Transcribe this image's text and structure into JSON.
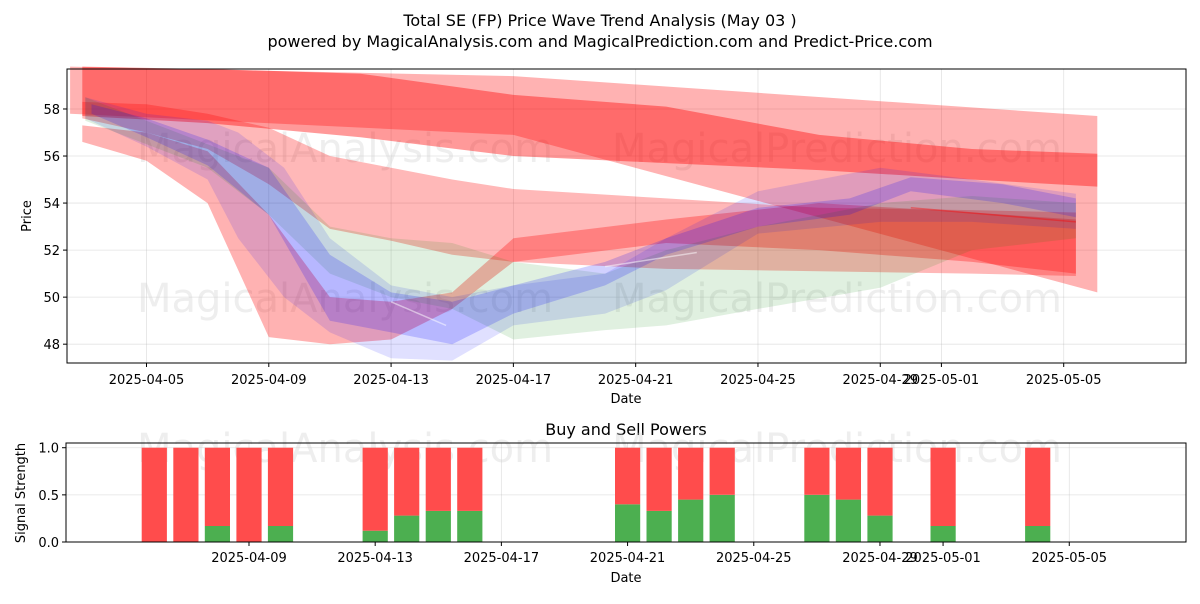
{
  "figure": {
    "title_line1": "Total SE (FP) Price Wave Trend Analysis (May 03 )",
    "title_line2": "powered by MagicalAnalysis.com and MagicalPrediction.com and Predict-Price.com",
    "watermarks": [
      "MagicalAnalysis.com",
      "MagicalPrediction.com",
      "MagicalAnalysis.com",
      "MagicalPrediction.com",
      "MagicalAnalysis.com",
      "MagicalPrediction.com"
    ]
  },
  "chart_data": [
    {
      "type": "area",
      "title": "",
      "xlabel": "Date",
      "ylabel": "Price",
      "x_start": "2025-04-02",
      "xlim": [
        0.4,
        37.0
      ],
      "ylim": [
        47.2,
        59.7
      ],
      "xticks": [
        {
          "day": 3,
          "label": "2025-04-05"
        },
        {
          "day": 7,
          "label": "2025-04-09"
        },
        {
          "day": 11,
          "label": "2025-04-13"
        },
        {
          "day": 15,
          "label": "2025-04-17"
        },
        {
          "day": 19,
          "label": "2025-04-21"
        },
        {
          "day": 23,
          "label": "2025-04-25"
        },
        {
          "day": 27,
          "label": "2025-04-29"
        },
        {
          "day": 29,
          "label": "2025-05-01"
        },
        {
          "day": 33,
          "label": "2025-05-05"
        }
      ],
      "yticks": [
        48,
        50,
        52,
        54,
        56,
        58
      ],
      "bands": [
        {
          "color": "#ff0000",
          "opacity": 0.3,
          "x": [
            0.5,
            15,
            34.1
          ],
          "upper": [
            59.8,
            59.4,
            57.7
          ],
          "lower": [
            57.8,
            56.9,
            50.2
          ]
        },
        {
          "color": "#ff0000",
          "opacity": 0.4,
          "x": [
            0.9,
            5,
            10,
            15,
            20,
            25,
            30,
            34.1
          ],
          "upper": [
            59.8,
            59.7,
            59.5,
            58.6,
            58.1,
            56.9,
            56.3,
            56.1
          ],
          "lower": [
            57.7,
            57.4,
            56.8,
            56.0,
            55.7,
            55.4,
            55.0,
            54.7
          ]
        },
        {
          "color": "#ff0000",
          "opacity": 0.28,
          "x": [
            0.9,
            3,
            5,
            7,
            9,
            11,
            13,
            15,
            20,
            25,
            30,
            33.4
          ],
          "upper": [
            58.3,
            58.2,
            57.8,
            57.2,
            56.0,
            55.5,
            55.0,
            54.6,
            54.2,
            53.8,
            53.7,
            53.6
          ],
          "lower": [
            57.6,
            57.0,
            56.3,
            54.8,
            52.9,
            52.4,
            51.8,
            51.5,
            51.2,
            51.1,
            51.0,
            50.9
          ]
        },
        {
          "color": "#ff0000",
          "opacity": 0.3,
          "x": [
            0.9,
            3,
            5,
            7,
            9,
            11,
            13,
            15,
            20,
            25,
            30,
            33.4
          ],
          "upper": [
            57.3,
            57.0,
            56.2,
            53.5,
            50.0,
            49.8,
            50.2,
            52.5,
            53.3,
            54.0,
            53.6,
            53.3
          ],
          "lower": [
            56.6,
            55.8,
            54.0,
            48.3,
            48.0,
            48.2,
            49.5,
            51.5,
            52.3,
            52.0,
            51.5,
            51.0
          ]
        },
        {
          "color": "#0000ff",
          "opacity": 0.12,
          "x": [
            1.0,
            3,
            5,
            6,
            7.5,
            9,
            11,
            13,
            15,
            18,
            20,
            23,
            27,
            30,
            33.4
          ],
          "upper": [
            58.5,
            57.8,
            57.5,
            57.0,
            55.5,
            52.5,
            50.5,
            50.0,
            50.5,
            51.0,
            52.5,
            54.5,
            55.5,
            55.0,
            54.4
          ],
          "lower": [
            57.6,
            56.4,
            55.0,
            52.5,
            50.0,
            48.5,
            47.4,
            47.3,
            48.8,
            49.3,
            50.3,
            52.7,
            53.2,
            53.2,
            52.9
          ]
        },
        {
          "color": "#008000",
          "opacity": 0.12,
          "x": [
            1.0,
            3,
            5,
            7,
            9,
            11,
            13,
            15,
            18,
            20,
            23,
            27,
            30,
            33.4
          ],
          "upper": [
            58.5,
            57.5,
            56.5,
            55.5,
            53.0,
            52.5,
            52.3,
            51.5,
            51.0,
            52.0,
            53.0,
            54.0,
            54.3,
            54.0
          ],
          "lower": [
            57.5,
            56.5,
            55.5,
            53.5,
            51.0,
            50.0,
            49.5,
            48.2,
            48.6,
            48.8,
            49.5,
            50.4,
            52.0,
            52.5
          ]
        },
        {
          "color": "#0000ff",
          "opacity": 0.18,
          "x": [
            1.2,
            3,
            5,
            7,
            9,
            11,
            13,
            15,
            18,
            20,
            23,
            26,
            28,
            31,
            33.4
          ],
          "upper": [
            58.2,
            57.6,
            56.7,
            55.5,
            51.8,
            50.2,
            49.8,
            50.5,
            51.5,
            52.5,
            53.8,
            54.2,
            55.1,
            54.8,
            54.2
          ],
          "lower": [
            57.8,
            56.8,
            55.6,
            53.5,
            49.0,
            48.5,
            48.0,
            49.3,
            50.5,
            51.8,
            53.0,
            53.5,
            54.5,
            54.0,
            53.4
          ]
        }
      ],
      "lines": [
        {
          "color": "#ff0000",
          "opacity": 0.4,
          "x": [
            28,
            33.4
          ],
          "y": [
            53.8,
            53.2
          ]
        },
        {
          "color": "#ffffff",
          "opacity": 0.5,
          "x": [
            18,
            21
          ],
          "y": [
            51.3,
            51.9
          ]
        },
        {
          "color": "#ffffff",
          "opacity": 0.5,
          "x": [
            11,
            12.8
          ],
          "y": [
            49.8,
            48.8
          ]
        }
      ]
    },
    {
      "type": "bar",
      "title": "Buy and Sell Powers",
      "xlabel": "Date",
      "ylabel": "Signal Strength",
      "x_start": "2025-04-02",
      "xlim": [
        1.2,
        36.7
      ],
      "ylim": [
        0,
        1.05
      ],
      "xticks": [
        {
          "day": 7,
          "label": "2025-04-09"
        },
        {
          "day": 11,
          "label": "2025-04-13"
        },
        {
          "day": 15,
          "label": "2025-04-17"
        },
        {
          "day": 19,
          "label": "2025-04-21"
        },
        {
          "day": 23,
          "label": "2025-04-25"
        },
        {
          "day": 27,
          "label": "2025-04-29"
        },
        {
          "day": 29,
          "label": "2025-05-01"
        },
        {
          "day": 33,
          "label": "2025-05-05"
        }
      ],
      "yticks": [
        {
          "value": 0.0,
          "label": "0.0"
        },
        {
          "value": 0.5,
          "label": "0.5"
        },
        {
          "value": 1.0,
          "label": "1.0"
        }
      ],
      "buy_color": "#4caf50",
      "sell_color": "#ff4c4c",
      "series": [
        {
          "name": "Buy",
          "days": [
            4,
            5,
            6,
            7,
            8,
            11,
            12,
            13,
            14,
            19,
            20,
            21,
            22,
            25,
            26,
            27,
            29,
            32
          ],
          "values": [
            0.0,
            0.0,
            0.17,
            0.0,
            0.17,
            0.12,
            0.28,
            0.33,
            0.33,
            0.4,
            0.33,
            0.45,
            0.5,
            0.5,
            0.45,
            0.28,
            0.17,
            0.17
          ]
        },
        {
          "name": "Sell",
          "days": [
            4,
            5,
            6,
            7,
            8,
            11,
            12,
            13,
            14,
            19,
            20,
            21,
            22,
            25,
            26,
            27,
            29,
            32
          ],
          "values": [
            1.0,
            1.0,
            0.83,
            1.0,
            0.83,
            0.88,
            0.72,
            0.67,
            0.67,
            0.6,
            0.67,
            0.55,
            0.5,
            0.5,
            0.55,
            0.72,
            0.83,
            0.83
          ]
        }
      ]
    }
  ]
}
